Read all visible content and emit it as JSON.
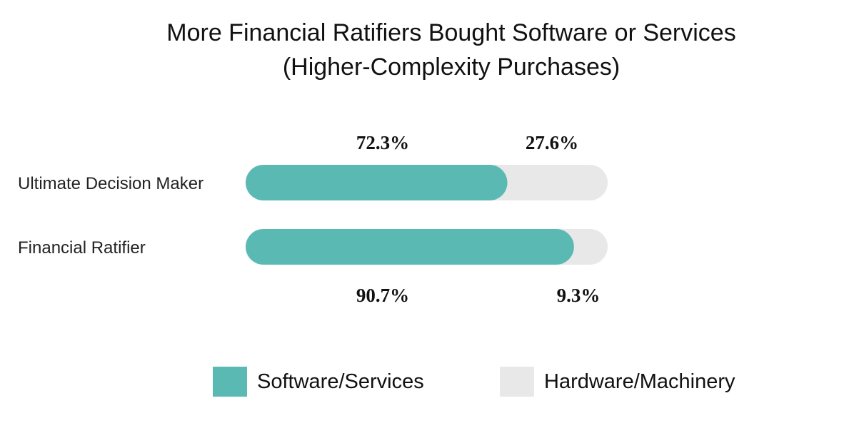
{
  "chart_data": {
    "type": "bar",
    "orientation": "horizontal",
    "stacked": true,
    "title": "More Financial Ratifiers Bought Software or Services",
    "subtitle": "(Higher-Complexity Purchases)",
    "categories": [
      "Ultimate Decision Maker",
      "Financial Ratifier"
    ],
    "series": [
      {
        "name": "Software/Services",
        "values": [
          72.3,
          90.7
        ],
        "labels": [
          "72.3%",
          "90.7%"
        ],
        "color": "#5bb9b4"
      },
      {
        "name": "Hardware/Machinery",
        "values": [
          27.6,
          9.3
        ],
        "labels": [
          "27.6%",
          "9.3%"
        ],
        "color": "#e8e8e8"
      }
    ],
    "xlim": [
      0,
      100
    ],
    "grid": false,
    "legend_position": "bottom"
  }
}
